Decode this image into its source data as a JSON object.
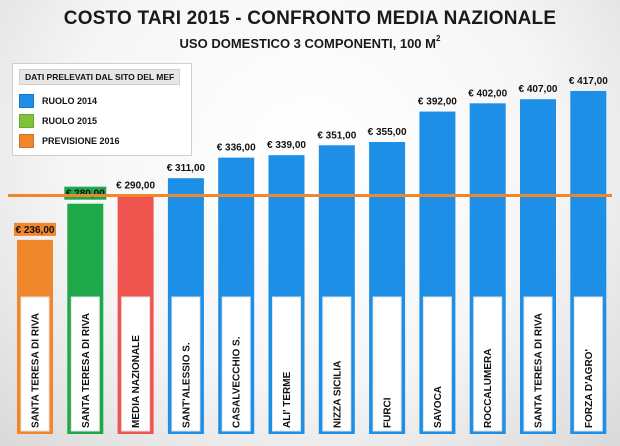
{
  "header": {
    "title": "COSTO TARI 2015 - CONFRONTO MEDIA NAZIONALE",
    "subtitle": "USO DOMESTICO 3 COMPONENTI, 100 M",
    "subtitle_sup": "2"
  },
  "legend": {
    "note": "DATI PRELEVATI DAL SITO DEL MEF",
    "items": [
      {
        "label": "RUOLO 2014",
        "color": "#1e8fe6"
      },
      {
        "label": "RUOLO 2015",
        "color": "#7dc43a"
      },
      {
        "label": "PREVISIONE 2016",
        "color": "#f0872d"
      }
    ]
  },
  "chart_data": {
    "type": "bar",
    "title": "COSTO TARI 2015 - CONFRONTO MEDIA NAZIONALE",
    "subtitle": "USO DOMESTICO 3 COMPONENTI, 100 M2",
    "categories": [
      "SANTA TERESA DI RIVA",
      "SANTA TERESA DI RIVA",
      "MEDIA NAZIONALE",
      "SANT'ALESSIO S.",
      "CASALVECCHIO S.",
      "ALI' TERME",
      "NIZZA SICILIA",
      "FURCI",
      "SAVOCA",
      "ROCCALUMERA",
      "SANTA TERESA DI RIVA",
      "FORZA D'AGRO'"
    ],
    "values": [
      236,
      280,
      290,
      311,
      336,
      339,
      351,
      355,
      392,
      402,
      407,
      417
    ],
    "value_labels": [
      "€ 236,00",
      "€ 280,00",
      "€ 290,00",
      "€ 311,00",
      "€ 336,00",
      "€ 339,00",
      "€ 351,00",
      "€ 355,00",
      "€ 392,00",
      "€ 402,00",
      "€ 407,00",
      "€ 417,00"
    ],
    "colors": [
      "#f0872d",
      "#1fa84a",
      "#f0544f",
      "#1e8fe6",
      "#1e8fe6",
      "#1e8fe6",
      "#1e8fe6",
      "#1e8fe6",
      "#1e8fe6",
      "#1e8fe6",
      "#1e8fe6",
      "#1e8fe6"
    ],
    "highlight_label": [
      true,
      true,
      false,
      false,
      false,
      false,
      false,
      false,
      false,
      false,
      false,
      false
    ],
    "reference_line": {
      "value": 290,
      "color": "#f0872d"
    },
    "ylim": [
      0,
      417
    ],
    "grid": false,
    "xlabel": "",
    "ylabel": ""
  }
}
